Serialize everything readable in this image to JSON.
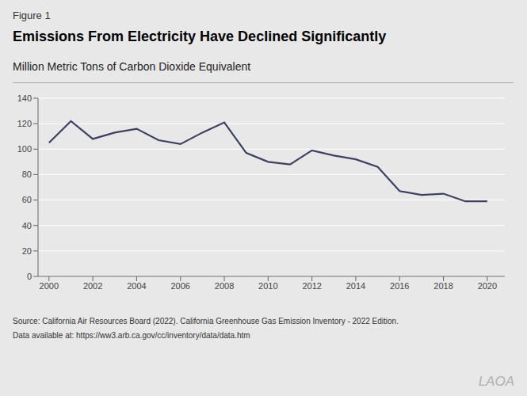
{
  "chart_data": {
    "type": "line",
    "title": "Emissions From Electricity Have Declined Significantly",
    "subtitle": "Million Metric Tons of Carbon Dioxide Equivalent",
    "annotations": [
      "Figure 1",
      "Source: California Air Resources Board (2022). California Greenhouse Gas Emission Inventory - 2022 Edition.",
      "Data available at: https://ww3.arb.ca.gov/cc/inventory/data/data.htm",
      "LAOA"
    ],
    "x": [
      2000,
      2001,
      2002,
      2003,
      2004,
      2005,
      2006,
      2007,
      2008,
      2009,
      2010,
      2011,
      2012,
      2013,
      2014,
      2015,
      2016,
      2017,
      2018,
      2019,
      2020
    ],
    "values": [
      105,
      122,
      108,
      113,
      116,
      107,
      104,
      113,
      121,
      97,
      90,
      88,
      99,
      95,
      92,
      86,
      67,
      64,
      65,
      59,
      59
    ],
    "color": "#3d4263",
    "xlim": [
      1999.5,
      2020.8
    ],
    "xticks": [
      2000,
      2002,
      2004,
      2006,
      2008,
      2010,
      2012,
      2014,
      2016,
      2018,
      2020
    ],
    "ylim": [
      0,
      140
    ],
    "yticks": [
      0,
      20,
      40,
      60,
      80,
      100,
      120,
      140
    ],
    "grid": true
  }
}
